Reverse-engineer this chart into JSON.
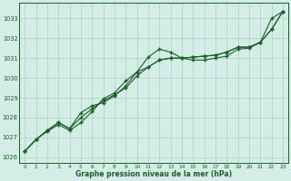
{
  "x": [
    0,
    1,
    2,
    3,
    4,
    5,
    6,
    7,
    8,
    9,
    10,
    11,
    12,
    13,
    14,
    15,
    16,
    17,
    18,
    19,
    20,
    21,
    22,
    23
  ],
  "line1": [
    1026.3,
    1026.9,
    1027.3,
    1027.65,
    1027.35,
    1027.75,
    1028.3,
    1028.95,
    1029.25,
    1029.85,
    1030.3,
    1031.05,
    1031.45,
    1031.3,
    1031.0,
    1030.9,
    1030.9,
    1031.0,
    1031.1,
    1031.45,
    1031.5,
    1031.8,
    1033.0,
    1033.35
  ],
  "line2": [
    1026.3,
    1026.9,
    1027.35,
    1027.75,
    1027.45,
    1028.25,
    1028.6,
    1028.75,
    1029.1,
    1029.6,
    1030.3,
    1030.55,
    1030.9,
    1031.0,
    1031.0,
    1031.05,
    1031.1,
    1031.15,
    1031.3,
    1031.55,
    1031.55,
    1031.8,
    1032.45,
    1033.35
  ],
  "line3": [
    1026.3,
    1026.9,
    1027.35,
    1027.75,
    1027.45,
    1028.0,
    1028.45,
    1028.85,
    1029.15,
    1029.5,
    1030.1,
    1030.55,
    1030.9,
    1031.0,
    1031.0,
    1031.05,
    1031.1,
    1031.15,
    1031.3,
    1031.55,
    1031.55,
    1031.8,
    1032.45,
    1033.35
  ],
  "bg_color": "#d4ede6",
  "grid_color": "#aacfc6",
  "line_color": "#1a5e28",
  "xlabel": "Graphe pression niveau de la mer (hPa)",
  "ylim": [
    1025.7,
    1033.8
  ],
  "xlim": [
    -0.5,
    23.5
  ],
  "yticks": [
    1026,
    1027,
    1028,
    1029,
    1030,
    1031,
    1032,
    1033
  ],
  "xticks": [
    0,
    1,
    2,
    3,
    4,
    5,
    6,
    7,
    8,
    9,
    10,
    11,
    12,
    13,
    14,
    15,
    16,
    17,
    18,
    19,
    20,
    21,
    22,
    23
  ]
}
